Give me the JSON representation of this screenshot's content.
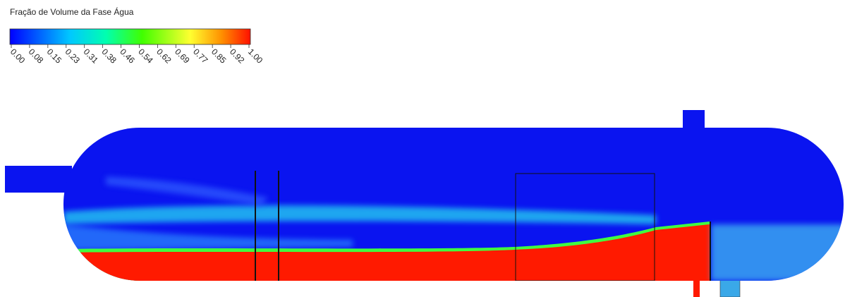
{
  "legend": {
    "title": "Fração de Volume da Fase Água",
    "ticks": [
      "0.00",
      "0.08",
      "0.15",
      "0.23",
      "0.31",
      "0.38",
      "0.46",
      "0.54",
      "0.62",
      "0.69",
      "0.77",
      "0.85",
      "0.92",
      "1.00"
    ]
  }
}
